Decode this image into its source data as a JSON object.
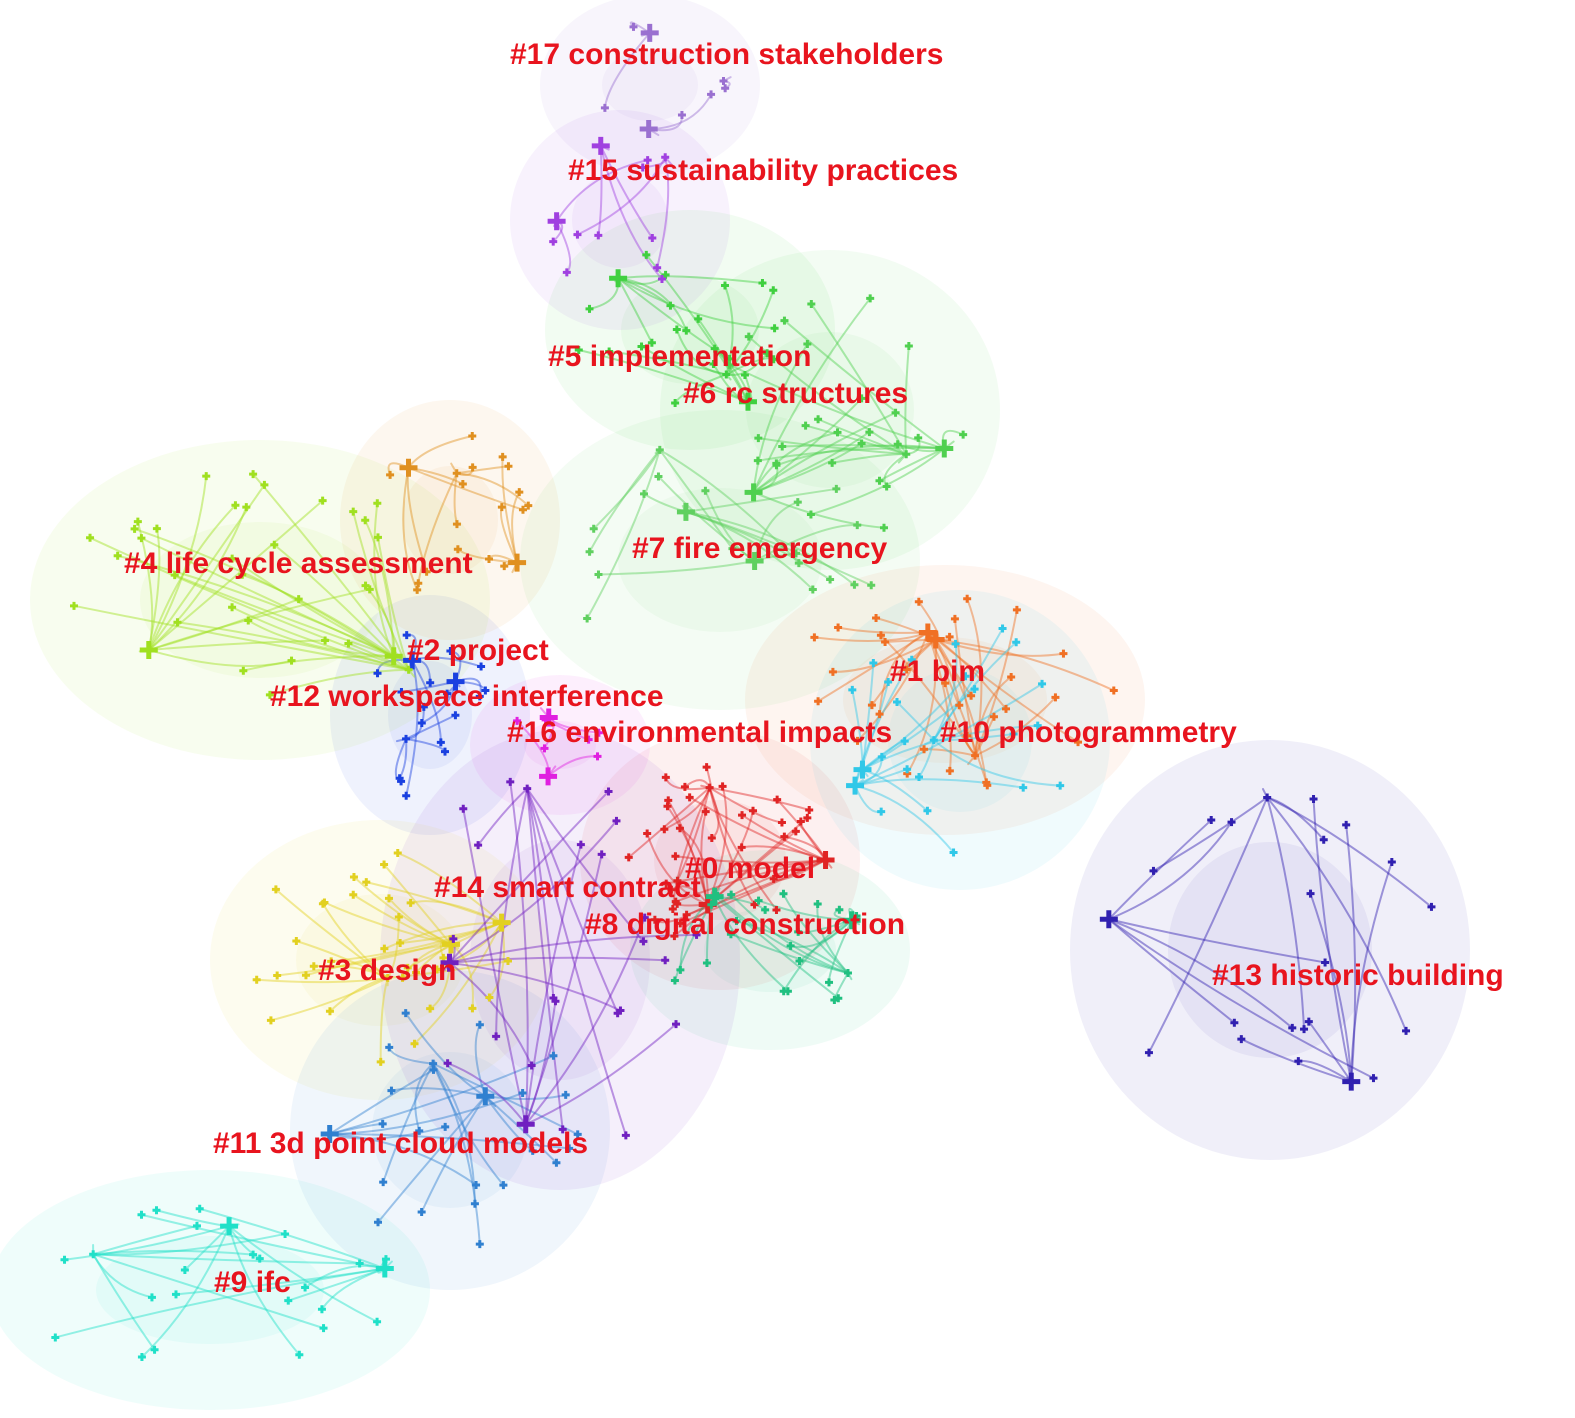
{
  "clusters": [
    {
      "label": "#0 model"
    },
    {
      "label": "#1 bim"
    },
    {
      "label": "#2 project"
    },
    {
      "label": "#3 design"
    },
    {
      "label": "#4 life cycle assessment"
    },
    {
      "label": "#5 implementation"
    },
    {
      "label": "#6 rc structures"
    },
    {
      "label": "#7 fire emergency"
    },
    {
      "label": "#8 digital construction"
    },
    {
      "label": "#9 ifc"
    },
    {
      "label": "#10 photogrammetry"
    },
    {
      "label": "#11 3d point cloud models"
    },
    {
      "label": "#12 workspace interference"
    },
    {
      "label": "#13 historic building"
    },
    {
      "label": "#14 smart contract"
    },
    {
      "label": "#15 sustainability practices"
    },
    {
      "label": "#16 environmental impacts"
    },
    {
      "label": "#17 construction stakeholders"
    }
  ]
}
